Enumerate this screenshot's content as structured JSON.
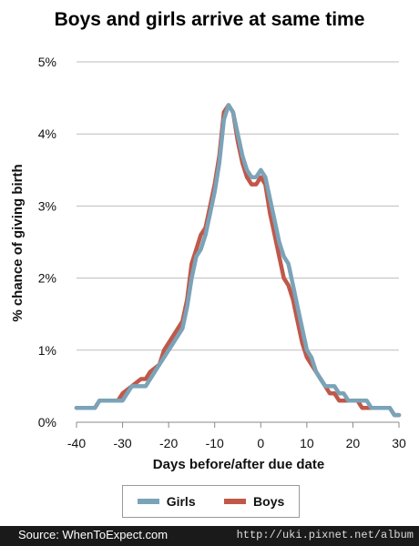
{
  "chart_data": {
    "type": "line",
    "title": "Boys and girls arrive at same time",
    "xlabel": "Days before/after due date",
    "ylabel": "% chance of giving birth",
    "xlim": [
      -40,
      30
    ],
    "ylim": [
      0,
      5
    ],
    "x_ticks": [
      -40,
      -30,
      -20,
      -10,
      0,
      10,
      20,
      30
    ],
    "x_tick_labels": [
      "-40",
      "-30",
      "-20",
      "-10",
      "0",
      "10",
      "20",
      "30"
    ],
    "y_ticks": [
      0,
      1,
      2,
      3,
      4,
      5
    ],
    "y_tick_labels": [
      "0%",
      "1%",
      "2%",
      "3%",
      "4%",
      "5%"
    ],
    "grid": "horizontal",
    "legend": "bottom",
    "series": [
      {
        "name": "Boys",
        "color": "#c0584a",
        "points": [
          [
            -40,
            0.2
          ],
          [
            -36,
            0.2
          ],
          [
            -35,
            0.3
          ],
          [
            -31,
            0.3
          ],
          [
            -30,
            0.4
          ],
          [
            -28,
            0.5
          ],
          [
            -26,
            0.6
          ],
          [
            -25,
            0.6
          ],
          [
            -24,
            0.7
          ],
          [
            -22,
            0.8
          ],
          [
            -21,
            1.0
          ],
          [
            -19,
            1.2
          ],
          [
            -17,
            1.4
          ],
          [
            -16,
            1.7
          ],
          [
            -15,
            2.2
          ],
          [
            -14,
            2.4
          ],
          [
            -13,
            2.6
          ],
          [
            -12,
            2.7
          ],
          [
            -11,
            3.0
          ],
          [
            -10,
            3.3
          ],
          [
            -9,
            3.7
          ],
          [
            -8,
            4.3
          ],
          [
            -7,
            4.4
          ],
          [
            -6,
            4.3
          ],
          [
            -5,
            3.9
          ],
          [
            -4,
            3.6
          ],
          [
            -3,
            3.4
          ],
          [
            -2,
            3.3
          ],
          [
            -1,
            3.3
          ],
          [
            0,
            3.4
          ],
          [
            1,
            3.3
          ],
          [
            2,
            2.9
          ],
          [
            3,
            2.6
          ],
          [
            4,
            2.3
          ],
          [
            5,
            2.0
          ],
          [
            6,
            1.9
          ],
          [
            7,
            1.7
          ],
          [
            8,
            1.4
          ],
          [
            9,
            1.1
          ],
          [
            10,
            0.9
          ],
          [
            11,
            0.8
          ],
          [
            12,
            0.7
          ],
          [
            13,
            0.6
          ],
          [
            14,
            0.5
          ],
          [
            15,
            0.4
          ],
          [
            16,
            0.4
          ],
          [
            17,
            0.3
          ],
          [
            18,
            0.3
          ],
          [
            19,
            0.3
          ],
          [
            20,
            0.3
          ],
          [
            21,
            0.3
          ],
          [
            22,
            0.2
          ],
          [
            23,
            0.2
          ],
          [
            24,
            0.2
          ],
          [
            25,
            0.2
          ],
          [
            26,
            0.2
          ],
          [
            27,
            0.2
          ],
          [
            28,
            0.2
          ],
          [
            29,
            0.1
          ],
          [
            30,
            0.1
          ]
        ]
      },
      {
        "name": "Girls",
        "color": "#7aa3b8",
        "points": [
          [
            -40,
            0.2
          ],
          [
            -36,
            0.2
          ],
          [
            -35,
            0.3
          ],
          [
            -30,
            0.3
          ],
          [
            -28,
            0.5
          ],
          [
            -25,
            0.5
          ],
          [
            -24,
            0.6
          ],
          [
            -22,
            0.8
          ],
          [
            -21,
            0.9
          ],
          [
            -19,
            1.1
          ],
          [
            -17,
            1.3
          ],
          [
            -16,
            1.6
          ],
          [
            -15,
            2.0
          ],
          [
            -14,
            2.3
          ],
          [
            -13,
            2.4
          ],
          [
            -12,
            2.6
          ],
          [
            -11,
            2.9
          ],
          [
            -10,
            3.2
          ],
          [
            -9,
            3.6
          ],
          [
            -8,
            4.2
          ],
          [
            -7,
            4.4
          ],
          [
            -6,
            4.3
          ],
          [
            -5,
            4.0
          ],
          [
            -4,
            3.7
          ],
          [
            -3,
            3.5
          ],
          [
            -2,
            3.4
          ],
          [
            -1,
            3.4
          ],
          [
            0,
            3.5
          ],
          [
            1,
            3.4
          ],
          [
            2,
            3.1
          ],
          [
            3,
            2.8
          ],
          [
            4,
            2.5
          ],
          [
            5,
            2.3
          ],
          [
            6,
            2.2
          ],
          [
            7,
            1.9
          ],
          [
            8,
            1.6
          ],
          [
            9,
            1.3
          ],
          [
            10,
            1.0
          ],
          [
            11,
            0.9
          ],
          [
            12,
            0.7
          ],
          [
            13,
            0.6
          ],
          [
            14,
            0.5
          ],
          [
            15,
            0.5
          ],
          [
            16,
            0.5
          ],
          [
            17,
            0.4
          ],
          [
            18,
            0.4
          ],
          [
            19,
            0.3
          ],
          [
            20,
            0.3
          ],
          [
            21,
            0.3
          ],
          [
            22,
            0.3
          ],
          [
            23,
            0.3
          ],
          [
            24,
            0.2
          ],
          [
            25,
            0.2
          ],
          [
            26,
            0.2
          ],
          [
            27,
            0.2
          ],
          [
            28,
            0.2
          ],
          [
            29,
            0.1
          ],
          [
            30,
            0.1
          ]
        ]
      }
    ]
  },
  "legend": {
    "items": [
      {
        "label": "Girls",
        "color": "#7aa3b8"
      },
      {
        "label": "Boys",
        "color": "#c0584a"
      }
    ]
  },
  "footer": {
    "source": "Source: WhenToExpect.com",
    "watermark": "http://uki.pixnet.net/album"
  }
}
